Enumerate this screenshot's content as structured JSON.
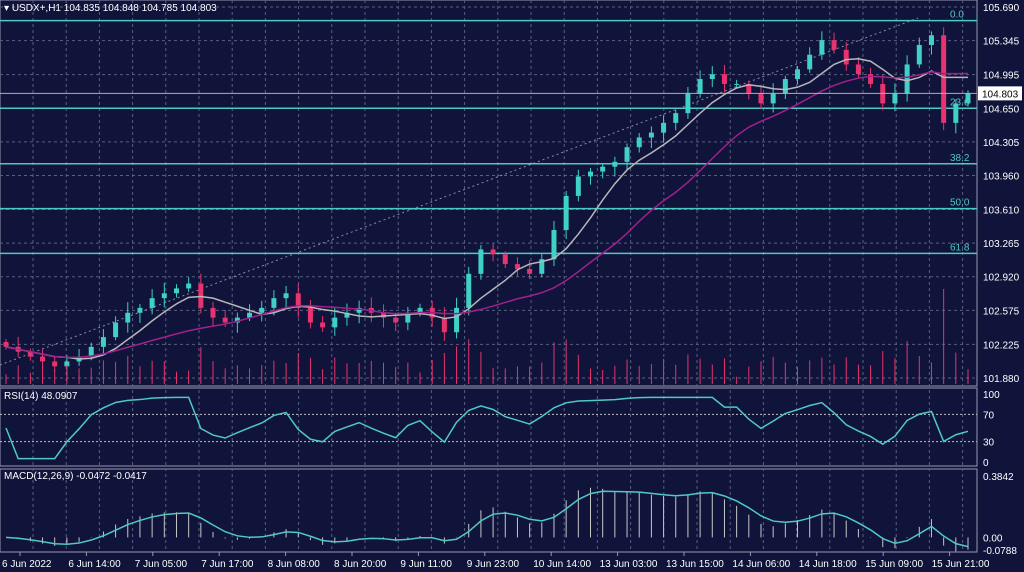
{
  "header": {
    "symbol": "USDX+,H1",
    "ohlc_text": "104.835 104.848 104.785 104.803"
  },
  "colors": {
    "background": "#10133a",
    "bull": "#3fd1c6",
    "bear": "#e8336e",
    "fib": "#4fc9c4",
    "ma_fast": "#b8b8b8",
    "ma_slow": "#a0208c",
    "rsi": "#4fc9c4",
    "macd": "#4fc9c4",
    "grid": "#5a5f80"
  },
  "chart_data": {
    "type": "candlestick",
    "price_axis": {
      "ticks": [
        "105.690",
        "105.345",
        "104.995",
        "104.650",
        "104.305",
        "103.960",
        "103.610",
        "103.265",
        "102.920",
        "102.575",
        "102.225",
        "101.880"
      ],
      "range": [
        101.88,
        105.69
      ]
    },
    "current_price": "104.803",
    "fibonacci": [
      {
        "label": "0.0",
        "price": 105.55
      },
      {
        "label": "23.6",
        "price": 104.65
      },
      {
        "label": "38.2",
        "price": 104.08
      },
      {
        "label": "50.0",
        "price": 103.62
      },
      {
        "label": "61.8",
        "price": 103.16
      }
    ],
    "closes": [
      102.2,
      102.15,
      102.1,
      102.05,
      102.0,
      102.05,
      102.1,
      102.2,
      102.3,
      102.45,
      102.55,
      102.6,
      102.7,
      102.75,
      102.8,
      102.85,
      102.6,
      102.5,
      102.45,
      102.5,
      102.55,
      102.6,
      102.7,
      102.75,
      102.6,
      102.45,
      102.4,
      102.5,
      102.55,
      102.6,
      102.55,
      102.5,
      102.45,
      102.55,
      102.6,
      102.5,
      102.35,
      102.6,
      102.95,
      103.2,
      103.15,
      103.05,
      103.0,
      102.95,
      103.1,
      103.4,
      103.75,
      103.95,
      104.0,
      104.05,
      104.1,
      104.25,
      104.35,
      104.4,
      104.5,
      104.6,
      104.8,
      104.95,
      105.0,
      104.9,
      104.9,
      104.8,
      104.7,
      104.8,
      104.95,
      105.05,
      105.2,
      105.35,
      105.25,
      105.1,
      105.0,
      104.9,
      104.7,
      104.8,
      105.1,
      105.3,
      105.4,
      104.5,
      104.7,
      104.803
    ],
    "time_axis": [
      "6 Jun 2022",
      "6 Jun 14:00",
      "7 Jun 05:00",
      "7 Jun 17:00",
      "8 Jun 08:00",
      "8 Jun 20:00",
      "9 Jun 11:00",
      "9 Jun 23:00",
      "10 Jun 14:00",
      "13 Jun 03:00",
      "13 Jun 15:00",
      "14 Jun 06:00",
      "14 Jun 18:00",
      "15 Jun 09:00",
      "15 Jun 21:00"
    ],
    "rsi": {
      "label": "RSI(14) 48.0907",
      "ticks": [
        "100",
        "70",
        "30",
        "0"
      ],
      "levels": [
        70,
        30
      ]
    },
    "macd": {
      "label": "MACD(12,26,9) -0.0472 -0.0417",
      "ticks": [
        "0.3842",
        "0.00",
        "-0.0788"
      ],
      "range": [
        -0.0788,
        0.3842
      ]
    }
  }
}
